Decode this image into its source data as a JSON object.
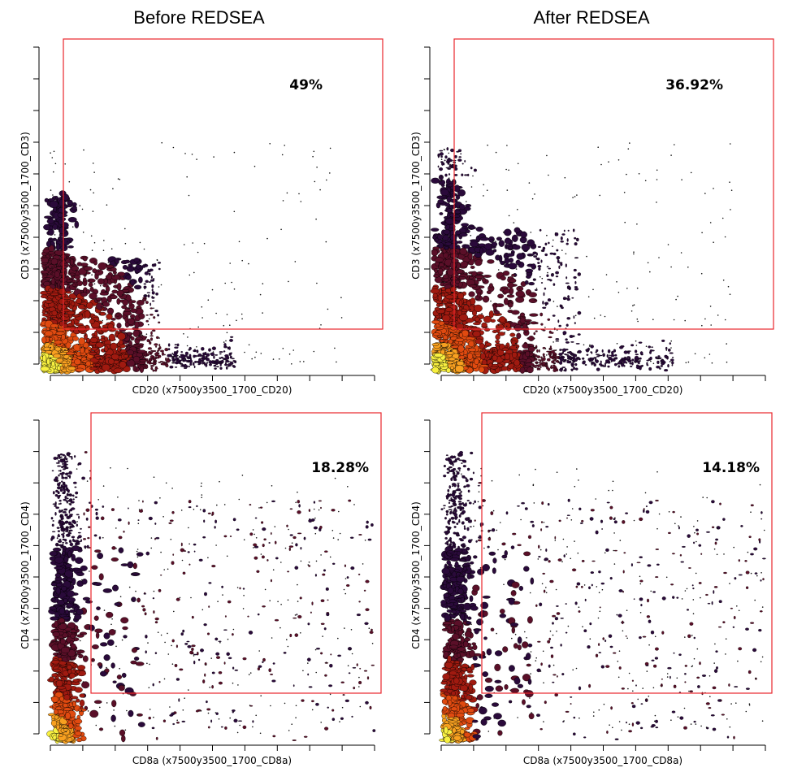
{
  "chart_data": [
    {
      "type": "scatter",
      "subtype": "density-contour",
      "column_title": "Before REDSEA",
      "xlabel": "CD20 (x7500y3500_1700_CD20)",
      "ylabel": "CD3 (x7500y3500_1700_CD3)",
      "gate_percent": "49%",
      "density_shape": "L",
      "gate_color": "#e8262b"
    },
    {
      "type": "scatter",
      "subtype": "density-contour",
      "column_title": "After REDSEA",
      "xlabel": "CD20 (x7500y3500_1700_CD20)",
      "ylabel": "CD3 (x7500y3500_1700_CD3)",
      "gate_percent": "36.92%",
      "density_shape": "L",
      "gate_color": "#e8262b"
    },
    {
      "type": "scatter",
      "subtype": "density-contour",
      "xlabel": "CD8a (x7500y3500_1700_CD8a)",
      "ylabel": "CD4 (x7500y3500_1700_CD4)",
      "gate_percent": "18.28%",
      "density_shape": "vertical",
      "gate_color": "#e8262b"
    },
    {
      "type": "scatter",
      "subtype": "density-contour",
      "xlabel": "CD8a (x7500y3500_1700_CD8a)",
      "ylabel": "CD4 (x7500y3500_1700_CD4)",
      "gate_percent": "14.18%",
      "density_shape": "vertical",
      "gate_color": "#e8262b"
    }
  ],
  "density_colors": [
    "#2a0a3a",
    "#5a0f28",
    "#a01a10",
    "#e04a10",
    "#f8a020",
    "#f8f040"
  ]
}
